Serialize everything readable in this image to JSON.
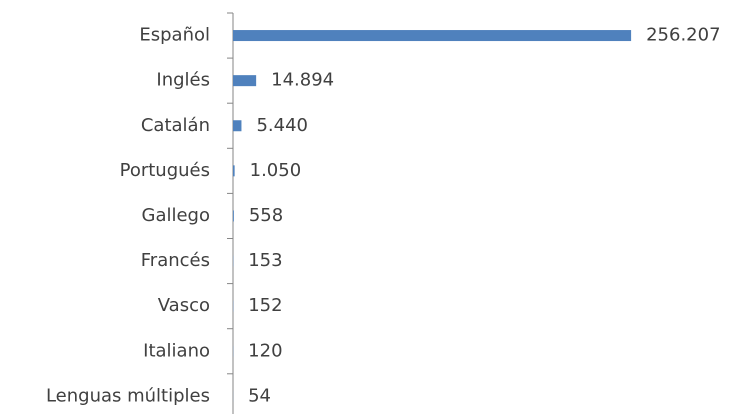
{
  "chart_data": {
    "type": "bar",
    "orientation": "horizontal",
    "categories": [
      "Español",
      "Inglés",
      "Catalán",
      "Portugués",
      "Gallego",
      "Francés",
      "Vasco",
      "Italiano",
      "Lenguas múltiples"
    ],
    "values": [
      256207,
      14894,
      5440,
      1050,
      558,
      153,
      152,
      120,
      54
    ],
    "value_labels": [
      "256.207",
      "14.894",
      "5.440",
      "1.050",
      "558",
      "153",
      "152",
      "120",
      "54"
    ],
    "color": "#4f81bd",
    "xlim": [
      0,
      260000
    ]
  }
}
